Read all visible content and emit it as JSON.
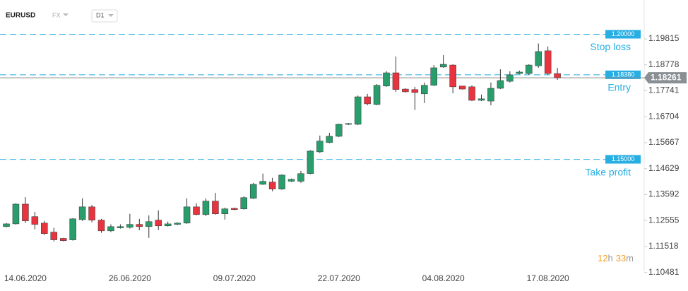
{
  "header": {
    "symbol": "EURUSD",
    "market": "FX",
    "timeframe": "D1"
  },
  "timer": {
    "hours": "12",
    "hours_unit": "h",
    "minutes": "33",
    "minutes_unit": "m"
  },
  "chart_data": {
    "type": "candlestick",
    "categories": [
      null,
      null,
      "14.06.2020",
      null,
      null,
      null,
      null,
      null,
      null,
      null,
      null,
      null,
      null,
      "26.06.2020",
      null,
      null,
      null,
      null,
      null,
      null,
      null,
      null,
      null,
      null,
      "09.07.2020",
      null,
      null,
      null,
      null,
      null,
      null,
      null,
      null,
      null,
      null,
      "22.07.2020",
      null,
      null,
      null,
      null,
      null,
      null,
      null,
      null,
      null,
      null,
      "04.08.2020",
      null,
      null,
      null,
      null,
      null,
      null,
      null,
      null,
      null,
      null,
      "17.08.2020",
      null
    ],
    "open": [
      1.1231,
      1.1242,
      1.1321,
      1.1271,
      1.1245,
      1.1209,
      1.1184,
      1.1178,
      1.1259,
      1.131,
      1.1257,
      1.1214,
      1.1226,
      1.1228,
      1.124,
      1.1231,
      1.1257,
      1.1234,
      1.124,
      1.1245,
      1.131,
      1.1279,
      1.1333,
      1.1282,
      1.1304,
      1.1302,
      1.1344,
      1.14,
      1.1409,
      1.1381,
      1.1412,
      1.1412,
      1.1443,
      1.153,
      1.1567,
      1.1592,
      1.164,
      1.164,
      1.175,
      1.1719,
      1.1793,
      1.1846,
      1.1781,
      1.1779,
      1.1762,
      1.1796,
      1.1869,
      1.1877,
      1.1793,
      1.179,
      1.1736,
      1.1733,
      1.1784,
      1.1812,
      1.1843,
      1.1843,
      1.1874,
      1.1934,
      1.1843
    ],
    "high": [
      1.1245,
      1.1324,
      1.1349,
      1.129,
      1.1254,
      1.1226,
      1.1186,
      1.1265,
      1.1344,
      1.1318,
      1.1262,
      1.124,
      1.124,
      1.1282,
      1.1262,
      1.1276,
      1.1296,
      1.1251,
      1.1248,
      1.1344,
      1.1324,
      1.1344,
      1.1366,
      1.1307,
      1.1307,
      1.1352,
      1.1406,
      1.1443,
      1.1426,
      1.144,
      1.1423,
      1.1454,
      1.1536,
      1.1595,
      1.1606,
      1.1642,
      1.1645,
      1.1755,
      1.1762,
      1.1801,
      1.1852,
      1.1911,
      1.1784,
      1.179,
      1.1807,
      1.1877,
      1.1917,
      1.188,
      1.1787,
      1.1796,
      1.1759,
      1.1807,
      1.186,
      1.1852,
      1.1855,
      1.188,
      1.1963,
      1.1951,
      1.1866
    ],
    "low": [
      1.1228,
      1.1239,
      1.1245,
      1.122,
      1.1198,
      1.1172,
      1.1172,
      1.1175,
      1.1254,
      1.1248,
      1.1206,
      1.1209,
      1.1223,
      1.1223,
      1.1217,
      1.1186,
      1.1217,
      1.1231,
      1.1237,
      1.1242,
      1.1276,
      1.1273,
      1.1279,
      1.1259,
      1.1296,
      1.1299,
      1.1341,
      1.1398,
      1.1372,
      1.1378,
      1.1409,
      1.1406,
      1.144,
      1.1525,
      1.1564,
      1.1589,
      1.1637,
      1.1637,
      1.1716,
      1.1716,
      1.179,
      1.177,
      1.1767,
      1.1697,
      1.1725,
      1.1793,
      1.1866,
      1.1764,
      1.1779,
      1.1733,
      1.1733,
      1.1716,
      1.1781,
      1.1807,
      1.184,
      1.1838,
      1.1866,
      1.1838,
      1.1818
    ],
    "close": [
      1.1242,
      1.1321,
      1.1254,
      1.124,
      1.1203,
      1.1178,
      1.1175,
      1.1262,
      1.131,
      1.1257,
      1.1214,
      1.1231,
      1.1231,
      1.124,
      1.1231,
      1.1251,
      1.1234,
      1.1242,
      1.1245,
      1.131,
      1.1279,
      1.1333,
      1.1282,
      1.1302,
      1.1299,
      1.1347,
      1.14,
      1.1412,
      1.1381,
      1.1437,
      1.142,
      1.1443,
      1.1533,
      1.1573,
      1.1592,
      1.164,
      1.1643,
      1.175,
      1.1722,
      1.1796,
      1.1846,
      1.1779,
      1.177,
      1.1767,
      1.1796,
      1.1866,
      1.188,
      1.179,
      1.1781,
      1.1736,
      1.1742,
      1.1784,
      1.1815,
      1.1838,
      1.1849,
      1.1877,
      1.1931,
      1.1843,
      1.1826
    ],
    "up_color": "#2a9d6c",
    "down_color": "#e8343f",
    "ylim": [
      1.103,
      1.2137
    ],
    "yticks": [
      1.10481,
      1.11518,
      1.12555,
      1.13592,
      1.14629,
      1.15667,
      1.16704,
      1.17741,
      1.18778,
      1.19815
    ],
    "levels": [
      {
        "value": 1.2,
        "label": "1.20000",
        "name": "Stop loss"
      },
      {
        "value": 1.1838,
        "label": "1.18380",
        "name": "Entry"
      },
      {
        "value": 1.15,
        "label": "1.15000",
        "name": "Take profit"
      }
    ],
    "level_color": "#27aee3",
    "current_price": {
      "value": 1.18261,
      "label": "1.18261"
    }
  }
}
